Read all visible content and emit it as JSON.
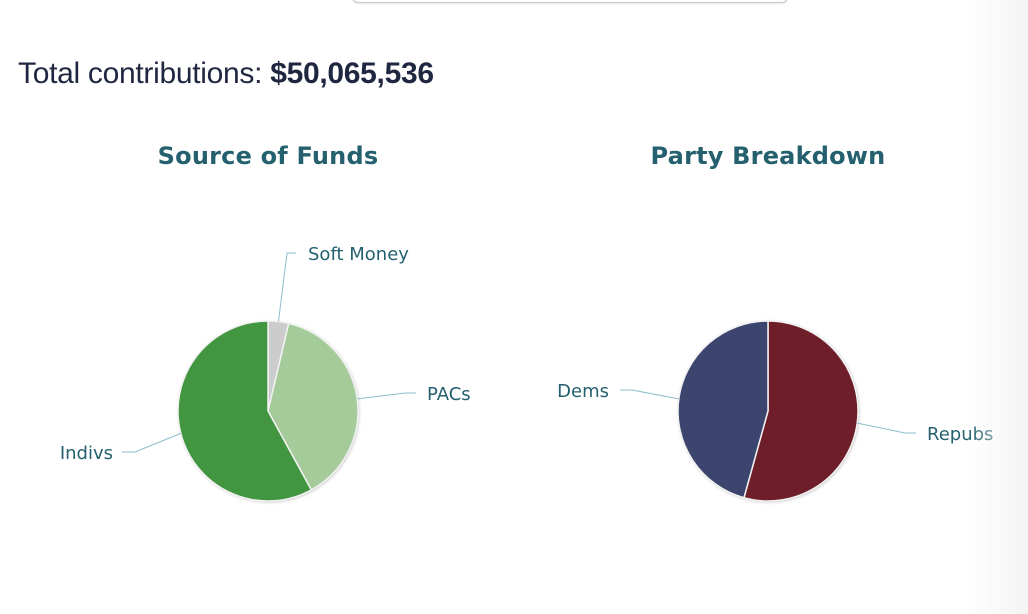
{
  "header": {
    "total_label": "Total contributions:",
    "total_amount": "$50,065,536"
  },
  "charts": {
    "source": {
      "title": "Source of Funds"
    },
    "party": {
      "title": "Party Breakdown"
    }
  },
  "chart_data": [
    {
      "type": "pie",
      "title": "Source of Funds",
      "categories": [
        "Soft Money",
        "PACs",
        "Indivs"
      ],
      "values": [
        3.7,
        38.3,
        58.0
      ],
      "unit": "percent (estimated)",
      "colors": [
        "#cccccc",
        "#a5cb9b",
        "#439640"
      ],
      "labels_position": "outside with leader lines",
      "legend": "none"
    },
    {
      "type": "pie",
      "title": "Party Breakdown",
      "categories": [
        "Repubs",
        "Dems"
      ],
      "values": [
        54.3,
        45.7
      ],
      "unit": "percent (estimated)",
      "colors": [
        "#6e1e28",
        "#3c456d"
      ],
      "labels_position": "outside with leader lines",
      "legend": "none"
    }
  ]
}
